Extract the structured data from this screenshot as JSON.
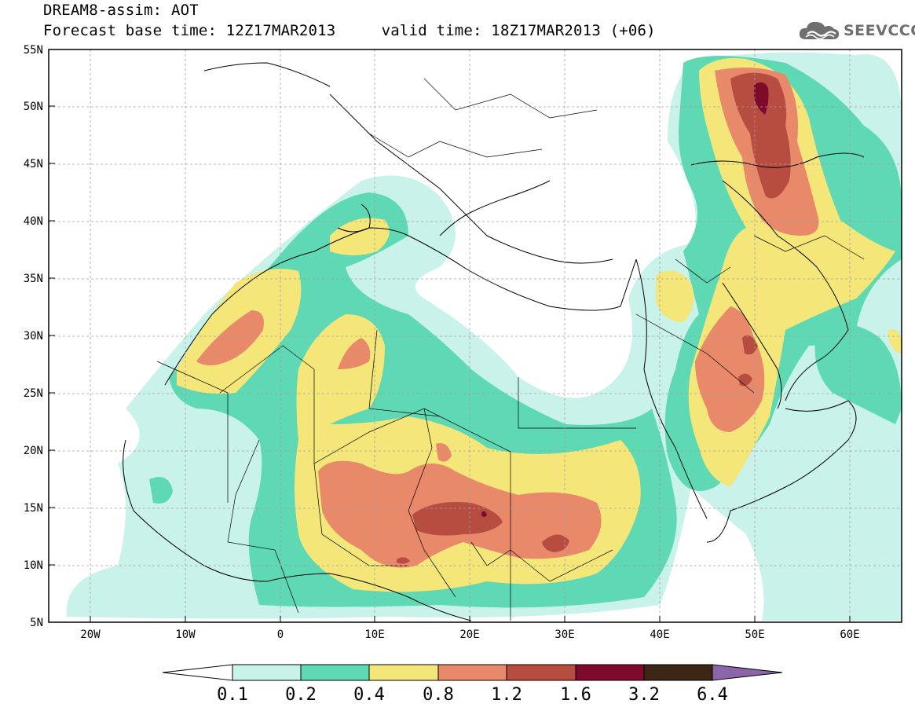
{
  "title": {
    "line1": "DREAM8-assim: AOT",
    "line2": "Forecast base time: 12Z17MAR2013     valid time: 18Z17MAR2013 (+06)"
  },
  "logo": {
    "text": "SEEVCCC",
    "icon": "cloud-icon",
    "color": "#6f6f6f"
  },
  "map": {
    "lon_range": [
      -25,
      65
    ],
    "lat_range": [
      5,
      55
    ],
    "lat_ticks": [
      "5N",
      "10N",
      "15N",
      "20N",
      "25N",
      "30N",
      "35N",
      "40N",
      "45N",
      "50N",
      "55N"
    ],
    "lon_ticks": [
      "20W",
      "10W",
      "0",
      "10E",
      "20E",
      "30E",
      "40E",
      "50E",
      "60E"
    ],
    "field": "AOT"
  },
  "colorbar": {
    "labels": [
      "0.1",
      "0.2",
      "0.4",
      "0.8",
      "1.2",
      "1.6",
      "3.2",
      "6.4"
    ],
    "colors": [
      "#c8f2ea",
      "#5ed9b4",
      "#f5e67a",
      "#e8896a",
      "#b74c40",
      "#7e0b2c",
      "#3c2614",
      "#8a65a8"
    ]
  }
}
